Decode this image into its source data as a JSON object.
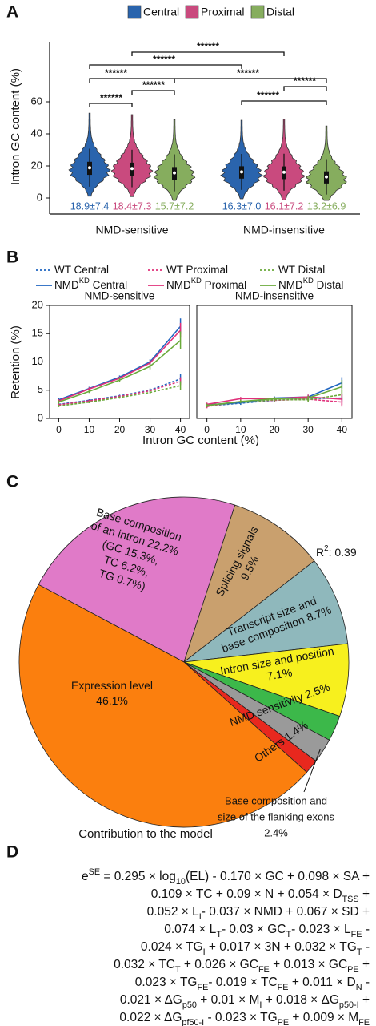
{
  "panel_labels": [
    "A",
    "B",
    "C",
    "D"
  ],
  "chart_data": [
    {
      "type": "violin",
      "y_label": "Intron GC content (%)",
      "categories": [
        "NMD-sensitive",
        "NMD-insensitive"
      ],
      "series": [
        {
          "name": "Central",
          "color": "#2a64ad",
          "values": [
            18.9,
            16.3
          ],
          "sd": [
            7.4,
            7.0
          ],
          "value_labels": [
            "18.9±7.4",
            "16.3±7.0"
          ]
        },
        {
          "name": "Proximal",
          "color": "#c94a7e",
          "values": [
            18.4,
            16.1
          ],
          "sd": [
            7.3,
            7.2
          ],
          "value_labels": [
            "18.4±7.3",
            "16.1±7.2"
          ]
        },
        {
          "name": "Distal",
          "color": "#86ad5e",
          "values": [
            15.7,
            13.2
          ],
          "sd": [
            7.2,
            6.9
          ],
          "value_labels": [
            "15.7±7.2",
            "13.2±6.9"
          ]
        }
      ],
      "ylim": [
        -10,
        97
      ],
      "yticks": [
        0,
        20,
        40,
        60
      ],
      "significance": [
        "******",
        "******",
        "******",
        "******",
        "******",
        "******",
        "******",
        "******"
      ],
      "legend": "top"
    },
    {
      "type": "line",
      "title": "NMD-sensitive",
      "x_label": "Intron GC content (%)",
      "y_label": "Retention (%)",
      "x": [
        0,
        10,
        20,
        30,
        40
      ],
      "xlim": [
        -3,
        43
      ],
      "ylim": [
        0,
        20
      ],
      "xticks": [
        0,
        10,
        20,
        30,
        40
      ],
      "yticks": [
        0,
        5,
        10,
        15,
        20
      ],
      "series": [
        {
          "name": [
            "WT Central"
          ],
          "color": "#1f65c0",
          "dashed": true,
          "values": [
            2.5,
            3.2,
            4.0,
            5.0,
            7.0
          ],
          "errors": [
            0.2,
            0.2,
            0.2,
            0.3,
            0.8
          ]
        },
        {
          "name": [
            "WT Proximal"
          ],
          "color": "#e0307a",
          "dashed": true,
          "values": [
            2.4,
            3.1,
            3.9,
            4.9,
            6.6
          ],
          "errors": [
            0.2,
            0.2,
            0.2,
            0.3,
            0.7
          ]
        },
        {
          "name": [
            "WT Distal"
          ],
          "color": "#6aaa3a",
          "dashed": true,
          "values": [
            2.2,
            2.9,
            3.7,
            4.6,
            5.8
          ],
          "errors": [
            0.2,
            0.2,
            0.2,
            0.3,
            0.8
          ]
        },
        {
          "name": [
            "NMD",
            {
              "sup": "KD"
            },
            " Central"
          ],
          "color": "#1f65c0",
          "dashed": false,
          "values": [
            3.3,
            5.3,
            7.3,
            10.0,
            16.3
          ],
          "errors": [
            0.3,
            0.3,
            0.3,
            0.5,
            1.4
          ]
        },
        {
          "name": [
            "NMD",
            {
              "sup": "KD"
            },
            " Proximal"
          ],
          "color": "#e0307a",
          "dashed": false,
          "values": [
            3.1,
            5.2,
            7.1,
            9.8,
            15.6
          ],
          "errors": [
            0.3,
            0.3,
            0.3,
            0.5,
            1.3
          ]
        },
        {
          "name": [
            "NMD",
            {
              "sup": "KD"
            },
            " Distal"
          ],
          "color": "#6aaa3a",
          "dashed": false,
          "values": [
            2.9,
            4.8,
            6.8,
            9.2,
            13.8
          ],
          "errors": [
            0.3,
            0.3,
            0.3,
            0.5,
            1.6
          ]
        }
      ]
    },
    {
      "type": "line",
      "title": "NMD-insensitive",
      "x": [
        0,
        10,
        20,
        30,
        40
      ],
      "xlim": [
        -3,
        43
      ],
      "ylim": [
        0,
        20
      ],
      "xticks": [
        0,
        10,
        20,
        30,
        40
      ],
      "series": [
        {
          "color": "#1f65c0",
          "dashed": true,
          "values": [
            2.2,
            2.7,
            3.2,
            3.5,
            3.6
          ],
          "errors": [
            0.3,
            0.3,
            0.3,
            0.4,
            0.8
          ]
        },
        {
          "color": "#e0307a",
          "dashed": true,
          "values": [
            2.1,
            3.0,
            3.2,
            3.4,
            2.9
          ],
          "errors": [
            0.3,
            0.3,
            0.3,
            0.4,
            0.8
          ]
        },
        {
          "color": "#6aaa3a",
          "dashed": true,
          "values": [
            2.3,
            2.8,
            3.3,
            3.3,
            4.2
          ],
          "errors": [
            0.3,
            0.3,
            0.3,
            0.4,
            0.9
          ]
        },
        {
          "color": "#1f65c0",
          "dashed": false,
          "values": [
            2.4,
            2.8,
            3.6,
            3.8,
            6.3
          ],
          "errors": [
            0.3,
            0.3,
            0.3,
            0.4,
            1.0
          ]
        },
        {
          "color": "#e0307a",
          "dashed": false,
          "values": [
            2.5,
            3.5,
            3.5,
            3.8,
            3.4
          ],
          "errors": [
            0.3,
            0.3,
            0.3,
            0.4,
            1.0
          ]
        },
        {
          "color": "#6aaa3a",
          "dashed": false,
          "values": [
            2.3,
            3.0,
            3.5,
            3.6,
            5.6
          ],
          "errors": [
            0.3,
            0.3,
            0.3,
            0.4,
            1.2
          ]
        }
      ]
    },
    {
      "type": "pie",
      "title": "Contribution to the model",
      "annotation": [
        "R",
        {
          "sup": "2"
        },
        ": 0.39"
      ],
      "categories": [
        [
          "Base composition",
          "of an intron 22.2%",
          "(GC 15.3%,",
          "TC 6.2%,",
          "TG 0.7%)"
        ],
        [
          "Splicing signals",
          "9.5%"
        ],
        [
          "Transcript size and",
          "base composition 8.7%"
        ],
        [
          "Intron size and position",
          "7.1%"
        ],
        [
          "NMD sensitivity 2.5%"
        ],
        [
          "Base composition and",
          "size of the flanking exons",
          "2.4%"
        ],
        [
          "Others 1.4%"
        ],
        [
          "Expression level",
          "46.1%"
        ]
      ],
      "values": [
        22.2,
        9.5,
        8.7,
        7.1,
        2.5,
        2.4,
        1.4,
        46.1
      ],
      "colors": [
        "#e07ac8",
        "#c9a06e",
        "#8fb8bc",
        "#f7f01e",
        "#3cb84a",
        "#9a9a9a",
        "#e8281e",
        "#fb7f0e"
      ]
    }
  ],
  "equation": {
    "lines": [
      [
        "e",
        {
          "sup": "SE"
        },
        " = 0.295 × log",
        {
          "sub": "10"
        },
        "(EL) - 0.170 × GC + 0.098 × SA +"
      ],
      [
        "0.109 × TC + 0.09 × N + 0.054 × D",
        {
          "sub": "TSS"
        },
        " +"
      ],
      [
        "0.052 × L",
        {
          "sub": "I"
        },
        "- 0.037 × NMD + 0.067 × SD +"
      ],
      [
        "0.074 × L",
        {
          "sub": "T"
        },
        "- 0.03 × GC",
        {
          "sub": "T"
        },
        "- 0.023 × L",
        {
          "sub": "FE"
        },
        " -"
      ],
      [
        "0.024 × TG",
        {
          "sub": "I"
        },
        " + 0.017 × 3N + 0.032 × TG",
        {
          "sub": "T"
        },
        " -"
      ],
      [
        "0.032 × TC",
        {
          "sub": "T"
        },
        " + 0.026 × GC",
        {
          "sub": "FE"
        },
        " + 0.013 × GC",
        {
          "sub": "PE"
        },
        " +"
      ],
      [
        "0.023 × TG",
        {
          "sub": "FE"
        },
        "- 0.019 × TC",
        {
          "sub": "FE"
        },
        " + 0.011 × D",
        {
          "sub": "N"
        },
        " -"
      ],
      [
        "0.021 × ΔG",
        {
          "sub": "p50"
        },
        " + 0.01 × M",
        {
          "sub": "I"
        },
        " + 0.018 × ΔG",
        {
          "sub": "p50-I"
        },
        " +"
      ],
      [
        "0.022 × ΔG",
        {
          "sub": "pf50-I"
        },
        " - 0.023 × TG",
        {
          "sub": "PE"
        },
        " + 0.009 × M",
        {
          "sub": "FE"
        }
      ]
    ]
  }
}
